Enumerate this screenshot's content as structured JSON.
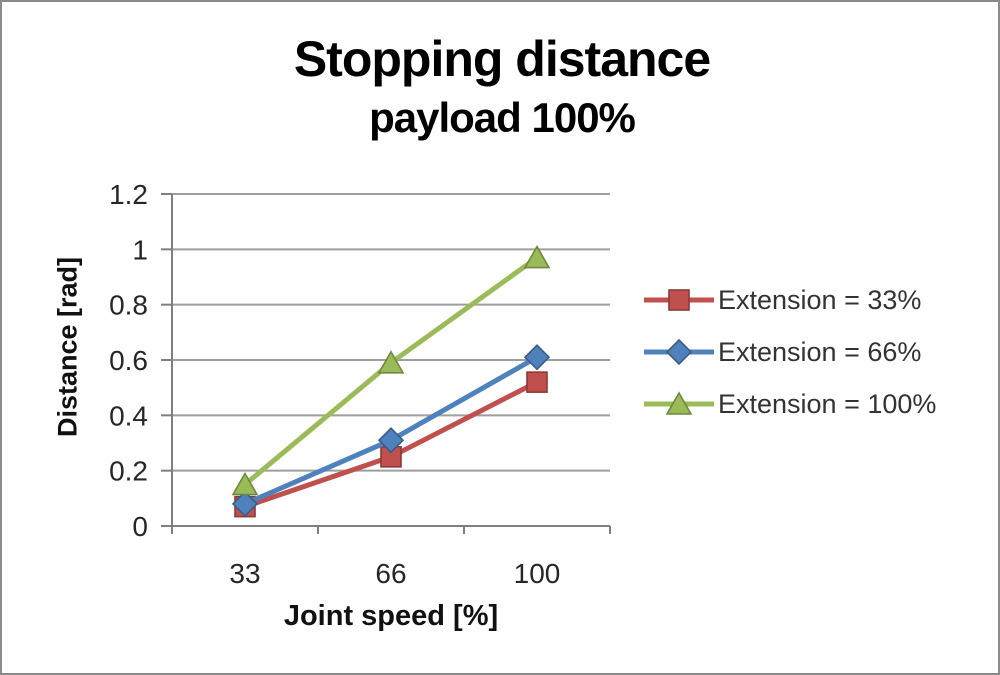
{
  "window": {
    "background": "#ffffff",
    "border_color": "#8a8a8a"
  },
  "chart_data": {
    "type": "line",
    "title": "Stopping distance",
    "subtitle": "payload 100%",
    "xlabel": "Joint speed [%]",
    "ylabel": "Distance [rad]",
    "categories": [
      "33",
      "66",
      "100"
    ],
    "x_values": [
      33,
      66,
      100
    ],
    "y_ticks": [
      0,
      0.2,
      0.4,
      0.6,
      0.8,
      1,
      1.2
    ],
    "y_tick_labels": [
      "0",
      "0.2",
      "0.4",
      "0.6",
      "0.8",
      "1",
      "1.2"
    ],
    "ylim": [
      0,
      1.2
    ],
    "grid": true,
    "legend_position": "right",
    "series": [
      {
        "name": "Extension = 33%",
        "marker": "square",
        "color": "#C0504D",
        "values": [
          0.07,
          0.25,
          0.52
        ]
      },
      {
        "name": "Extension = 66%",
        "marker": "diamond",
        "color": "#4F81BD",
        "values": [
          0.08,
          0.31,
          0.61
        ]
      },
      {
        "name": "Extension = 100%",
        "marker": "triangle",
        "color": "#9BBB59",
        "values": [
          0.15,
          0.59,
          0.97
        ]
      }
    ],
    "colors": {
      "gridline": "#9e9e9e",
      "axis": "#7f7f7f",
      "tick_text": "#262626",
      "title_text": "#000000",
      "legend_text": "#333333"
    }
  }
}
